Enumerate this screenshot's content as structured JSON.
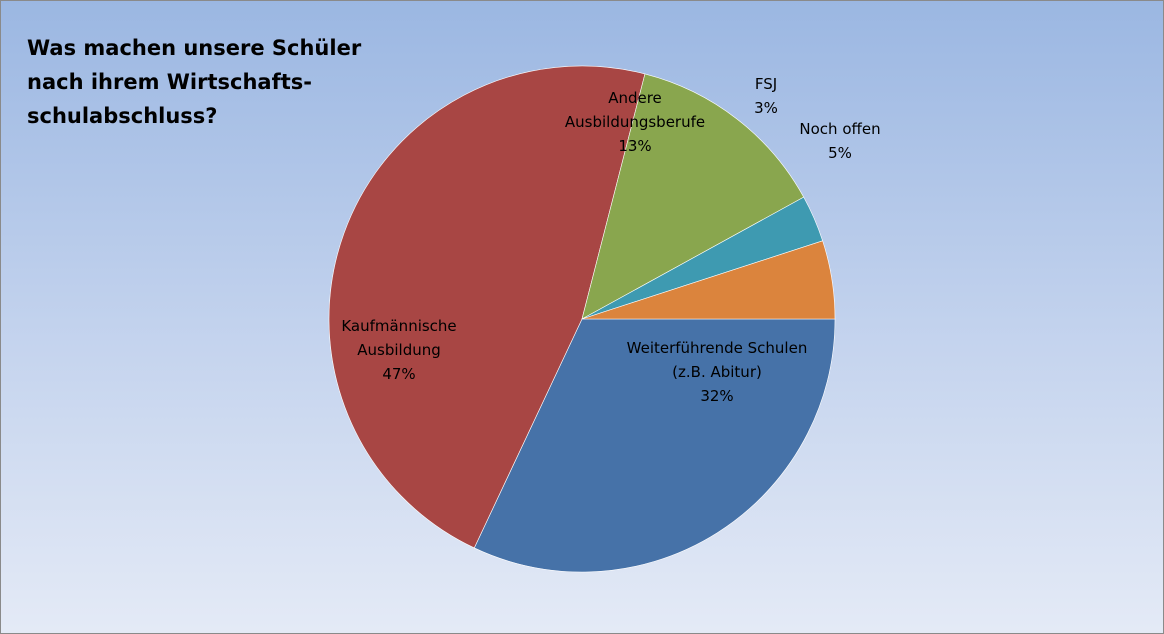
{
  "chart_data": {
    "type": "pie",
    "title_lines": [
      "Was machen unsere Schüler",
      "nach ihrem Wirtschafts-",
      "schulabschluss?"
    ],
    "slices": [
      {
        "label_lines": [
          "Weiterführende Schulen",
          "(z.B. Abitur)"
        ],
        "value": 32,
        "value_label": "32%",
        "color": "#4672a8"
      },
      {
        "label_lines": [
          "Kaufmännische",
          "Ausbildung"
        ],
        "value": 47,
        "value_label": "47%",
        "color": "#a84644"
      },
      {
        "label_lines": [
          "Andere",
          "Ausbildungsberufe"
        ],
        "value": 13,
        "value_label": "13%",
        "color": "#89a64e"
      },
      {
        "label_lines": [
          "FSJ"
        ],
        "value": 3,
        "value_label": "3%",
        "color": "#3e9ab1"
      },
      {
        "label_lines": [
          "Noch offen"
        ],
        "value": 5,
        "value_label": "5%",
        "color": "#db843d"
      }
    ]
  }
}
